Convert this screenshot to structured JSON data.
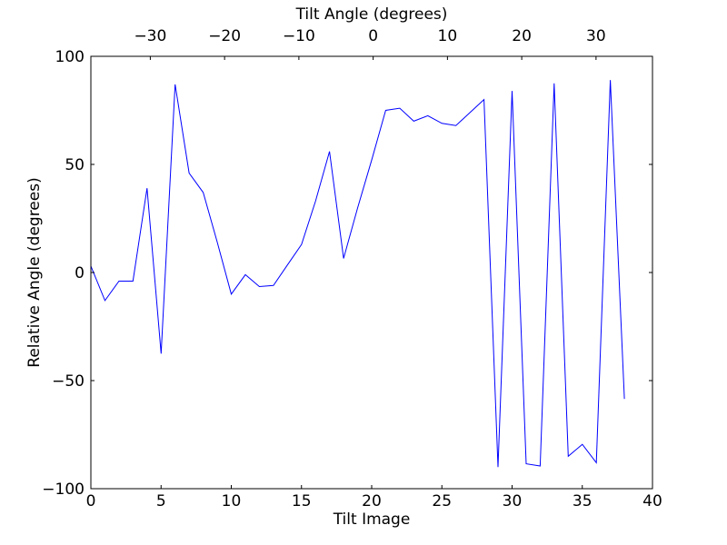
{
  "colors": {
    "line": "#0000ff",
    "axis": "#000000",
    "background": "#ffffff",
    "text": "#000000"
  },
  "chart_data": {
    "type": "line",
    "title": "",
    "xlabel": "Tilt Image",
    "ylabel": "Relative Angle (degrees)",
    "x2label": "Tilt Angle (degrees)",
    "xlim": [
      0,
      40
    ],
    "ylim": [
      -100,
      100
    ],
    "x2lim": [
      -38.0,
      37.6
    ],
    "grid": false,
    "legend_position": "none",
    "line_color": "#0000ff",
    "x": [
      0,
      1,
      2,
      3,
      4,
      5,
      6,
      7,
      8,
      9,
      10,
      11,
      12,
      13,
      14,
      15,
      16,
      17,
      18,
      19,
      20,
      21,
      22,
      23,
      24,
      25,
      26,
      27,
      28,
      29,
      30,
      31,
      32,
      33,
      34,
      35,
      36,
      37,
      38
    ],
    "y": [
      3,
      -13,
      -4,
      -4,
      39,
      -37.5,
      87,
      46,
      37,
      14,
      -10,
      -1,
      -6.5,
      -6,
      3.5,
      13,
      33,
      56,
      6.5,
      30,
      52,
      75,
      76,
      70,
      72.5,
      69,
      68,
      74,
      80,
      -90,
      84,
      -88.5,
      -89.5,
      87.5,
      -85,
      -79.5,
      -88,
      89,
      -58.5
    ],
    "x_ticks": {
      "values": [
        0,
        5,
        10,
        15,
        20,
        25,
        30,
        35,
        40
      ],
      "labels": [
        "0",
        "5",
        "10",
        "15",
        "20",
        "25",
        "30",
        "35",
        "40"
      ]
    },
    "x2_ticks": {
      "values": [
        -30,
        -20,
        -10,
        0,
        10,
        20,
        30
      ],
      "labels": [
        "−30",
        "−20",
        "−10",
        "0",
        "10",
        "20",
        "30"
      ]
    },
    "y_ticks": {
      "values": [
        -100,
        -50,
        0,
        50,
        100
      ],
      "labels": [
        "−100",
        "−50",
        "0",
        "50",
        "100"
      ]
    }
  }
}
